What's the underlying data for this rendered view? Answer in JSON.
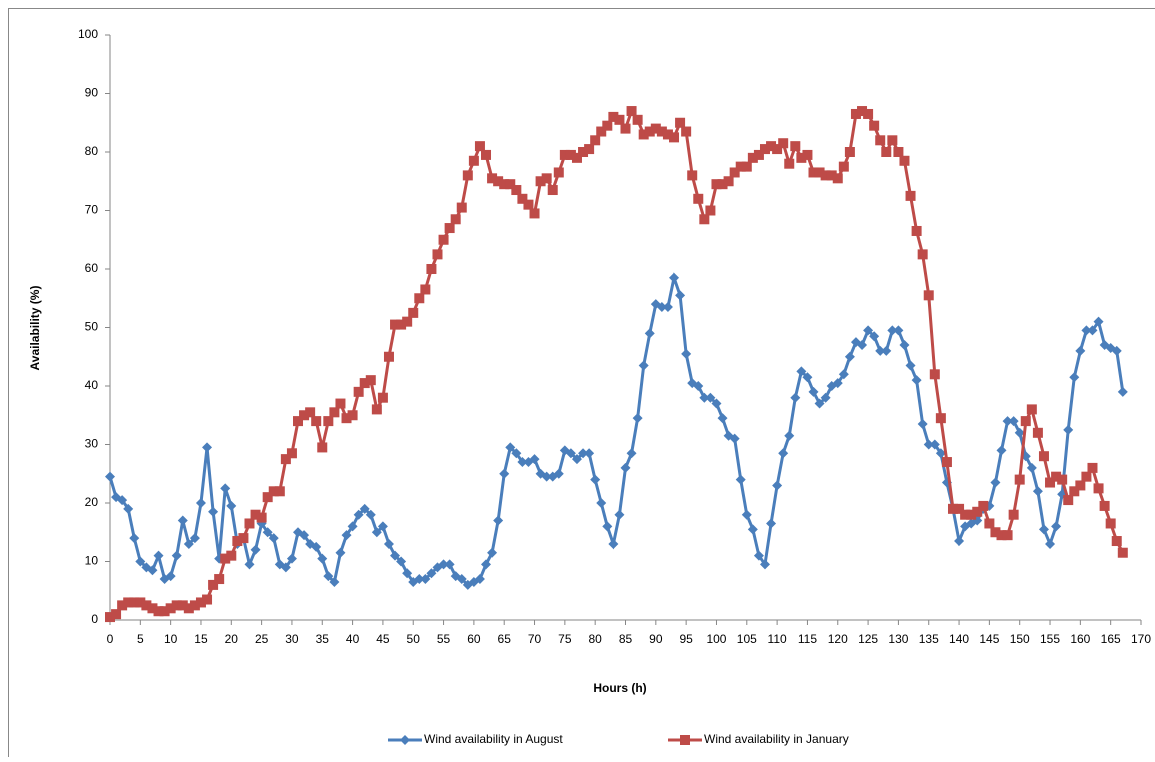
{
  "chart_data": {
    "type": "line",
    "x_label": "Hours (h)",
    "y_label": "Availability (%)",
    "x": [
      0,
      1,
      2,
      3,
      4,
      5,
      6,
      7,
      8,
      9,
      10,
      11,
      12,
      13,
      14,
      15,
      16,
      17,
      18,
      19,
      20,
      21,
      22,
      23,
      24,
      25,
      26,
      27,
      28,
      29,
      30,
      31,
      32,
      33,
      34,
      35,
      36,
      37,
      38,
      39,
      40,
      41,
      42,
      43,
      44,
      45,
      46,
      47,
      48,
      49,
      50,
      51,
      52,
      53,
      54,
      55,
      56,
      57,
      58,
      59,
      60,
      61,
      62,
      63,
      64,
      65,
      66,
      67,
      68,
      69,
      70,
      71,
      72,
      73,
      74,
      75,
      76,
      77,
      78,
      79,
      80,
      81,
      82,
      83,
      84,
      85,
      86,
      87,
      88,
      89,
      90,
      91,
      92,
      93,
      94,
      95,
      96,
      97,
      98,
      99,
      100,
      101,
      102,
      103,
      104,
      105,
      106,
      107,
      108,
      109,
      110,
      111,
      112,
      113,
      114,
      115,
      116,
      117,
      118,
      119,
      120,
      121,
      122,
      123,
      124,
      125,
      126,
      127,
      128,
      129,
      130,
      131,
      132,
      133,
      134,
      135,
      136,
      137,
      138,
      139,
      140,
      141,
      142,
      143,
      144,
      145,
      146,
      147,
      148,
      149,
      150,
      151,
      152,
      153,
      154,
      155,
      156,
      157,
      158,
      159,
      160,
      161,
      162,
      163,
      164,
      165,
      166,
      167
    ],
    "series": [
      {
        "name": "Wind availability in August",
        "color": "#4a7ebb",
        "marker": "diamond",
        "values": [
          24.5,
          21,
          20.5,
          19,
          14,
          10,
          9,
          8.5,
          11,
          7,
          7.5,
          11,
          17,
          13,
          14,
          20,
          29.5,
          18.5,
          10.5,
          22.5,
          19.5,
          13,
          14,
          9.5,
          12,
          16.5,
          15,
          14,
          9.5,
          9,
          10.5,
          15,
          14.5,
          13,
          12.5,
          10.5,
          7.5,
          6.5,
          11.5,
          14.5,
          16,
          18,
          19,
          18,
          15,
          16,
          13,
          11,
          10,
          8,
          6.5,
          7,
          7,
          8,
          9,
          9.5,
          9.5,
          7.5,
          7,
          6,
          6.5,
          7,
          9.5,
          11.5,
          17,
          25,
          29.5,
          28.5,
          27,
          27,
          27.5,
          25,
          24.5,
          24.5,
          25,
          29,
          28.5,
          27.5,
          28.5,
          28.5,
          24,
          20,
          16,
          13,
          18,
          26,
          28.5,
          34.5,
          43.5,
          49,
          54,
          53.5,
          53.5,
          58.5,
          55.5,
          45.5,
          40.5,
          40,
          38,
          38,
          37,
          34.5,
          31.5,
          31,
          24,
          18,
          15.5,
          11,
          9.5,
          16.5,
          23,
          28.5,
          31.5,
          38,
          42.5,
          41.5,
          39,
          37,
          38,
          40,
          40.5,
          42,
          45,
          47.5,
          47,
          49.5,
          48.5,
          46,
          46,
          49.5,
          49.5,
          47,
          43.5,
          41,
          33.5,
          30,
          30,
          28.5,
          23.5,
          19,
          13.5,
          16,
          16.5,
          17,
          19,
          19.5,
          23.5,
          29,
          34,
          34,
          32,
          28,
          26,
          22,
          15.5,
          13,
          16,
          21.5,
          32.5,
          41.5,
          46,
          49.5,
          49.5,
          51,
          47,
          46.5,
          46,
          39
        ]
      },
      {
        "name": "Wind availability in January",
        "color": "#be4b48",
        "marker": "square",
        "values": [
          0.5,
          1,
          2.5,
          3,
          3,
          3,
          2.5,
          2,
          1.5,
          1.5,
          2,
          2.5,
          2.5,
          2,
          2.5,
          3,
          3.5,
          6,
          7,
          10.5,
          11,
          13.5,
          14,
          16.5,
          18,
          17.5,
          21,
          22,
          22,
          27.5,
          28.5,
          34,
          35,
          35.5,
          34,
          29.5,
          34,
          35.5,
          37,
          34.5,
          35,
          39,
          40.5,
          41,
          36,
          38,
          45,
          50.5,
          50.5,
          51,
          52.5,
          55,
          56.5,
          60,
          62.5,
          65,
          67,
          68.5,
          70.5,
          76,
          78.5,
          81,
          79.5,
          75.5,
          75,
          74.5,
          74.5,
          73.5,
          72,
          71,
          69.5,
          75,
          75.5,
          73.5,
          76.5,
          79.5,
          79.5,
          79,
          80,
          80.5,
          82,
          83.5,
          84.5,
          86,
          85.5,
          84,
          87,
          85.5,
          83,
          83.5,
          84,
          83.5,
          83,
          82.5,
          85,
          83.5,
          76,
          72,
          68.5,
          70,
          74.5,
          74.5,
          75,
          76.5,
          77.5,
          77.5,
          79,
          79.5,
          80.5,
          81,
          80.5,
          81.5,
          78,
          81,
          79,
          79.5,
          76.5,
          76.5,
          76,
          76,
          75.5,
          77.5,
          80,
          86.5,
          87,
          86.5,
          84.5,
          82,
          80,
          82,
          80,
          78.5,
          72.5,
          66.5,
          62.5,
          55.5,
          42,
          34.5,
          27,
          19,
          19,
          18,
          18,
          18.5,
          19.5,
          16.5,
          15,
          14.5,
          14.5,
          18,
          24,
          34,
          36,
          32,
          28,
          23.5,
          24.5,
          24,
          20.5,
          22,
          23,
          24.5,
          26,
          22.5,
          19.5,
          16.5,
          13.5,
          11.5
        ]
      }
    ],
    "xlim": [
      0,
      170
    ],
    "xticks": [
      0,
      5,
      10,
      15,
      20,
      25,
      30,
      35,
      40,
      45,
      50,
      55,
      60,
      65,
      70,
      75,
      80,
      85,
      90,
      95,
      100,
      105,
      110,
      115,
      120,
      125,
      130,
      135,
      140,
      145,
      150,
      155,
      160,
      165,
      170
    ],
    "ylim": [
      0,
      100
    ],
    "yticks": [
      0,
      10,
      20,
      30,
      40,
      50,
      60,
      70,
      80,
      90,
      100
    ],
    "grid": false,
    "legend": "bottom"
  }
}
